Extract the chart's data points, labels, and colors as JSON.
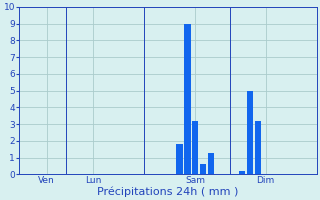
{
  "title": "",
  "xlabel": "Précipitations 24h ( mm )",
  "ylabel": "",
  "background_color": "#d8f0f0",
  "bar_color": "#1166ee",
  "grid_color": "#aacccc",
  "ylim": [
    0,
    10
  ],
  "yticks": [
    0,
    1,
    2,
    3,
    4,
    5,
    6,
    7,
    8,
    9,
    10
  ],
  "day_labels": [
    "Ven",
    "Lun",
    "Sam",
    "Dim"
  ],
  "day_positions": [
    3,
    9,
    22,
    31
  ],
  "bar_positions": [
    20,
    21,
    22,
    23,
    24,
    28,
    29,
    30
  ],
  "bar_heights": [
    1.8,
    9.0,
    3.2,
    0.6,
    1.3,
    0.2,
    5.0,
    3.2
  ],
  "total_bins": 38,
  "xlim": [
    -0.5,
    37.5
  ],
  "vline_positions": [
    5.5,
    15.5,
    26.5
  ],
  "xlabel_color": "#2244bb",
  "tick_label_color": "#2244bb",
  "tick_fontsize": 6.5,
  "xlabel_fontsize": 8.0,
  "bar_width": 0.8
}
